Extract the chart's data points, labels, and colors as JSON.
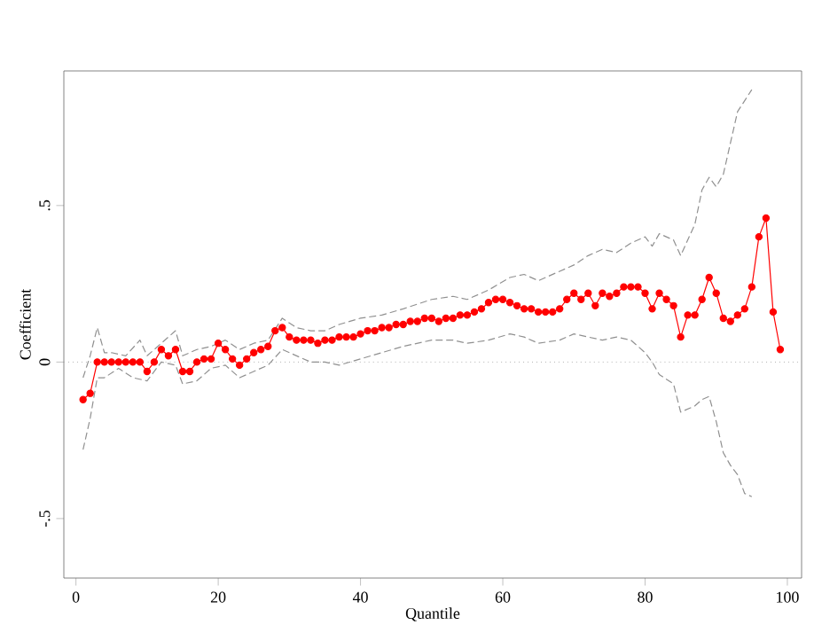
{
  "chart_data": {
    "type": "line",
    "xlabel": "Quantile",
    "ylabel": "Coefficient",
    "xlim": [
      -1.7,
      102
    ],
    "ylim": [
      -0.69,
      0.93
    ],
    "xticks": [
      0,
      20,
      40,
      60,
      80,
      100
    ],
    "yticks": [
      {
        "value": -0.5,
        "label": "-.5"
      },
      {
        "value": 0,
        "label": "0"
      },
      {
        "value": 0.5,
        "label": ".5"
      }
    ],
    "grid": false,
    "ref_lines": [
      {
        "axis": "y",
        "value": 0,
        "color": "#b0b0b0",
        "line_style": "dotted"
      }
    ],
    "series": [
      {
        "color": "#ff0000",
        "marker": "circle",
        "line_style": "solid",
        "x": [
          1,
          2,
          3,
          4,
          5,
          6,
          7,
          8,
          9,
          10,
          11,
          12,
          13,
          14,
          15,
          16,
          17,
          18,
          19,
          20,
          21,
          22,
          23,
          24,
          25,
          26,
          27,
          28,
          29,
          30,
          31,
          32,
          33,
          34,
          35,
          36,
          37,
          38,
          39,
          40,
          41,
          42,
          43,
          44,
          45,
          46,
          47,
          48,
          49,
          50,
          51,
          52,
          53,
          54,
          55,
          56,
          57,
          58,
          59,
          60,
          61,
          62,
          63,
          64,
          65,
          66,
          67,
          68,
          69,
          70,
          71,
          72,
          73,
          74,
          75,
          76,
          77,
          78,
          79,
          80,
          81,
          82,
          83,
          84,
          85,
          86,
          87,
          88,
          89,
          90,
          91,
          92,
          93,
          94,
          95,
          96,
          97,
          98,
          99
        ],
        "values": [
          -0.12,
          -0.1,
          0,
          0,
          0,
          0,
          0,
          0,
          0,
          -0.03,
          0,
          0.04,
          0.02,
          0.04,
          -0.03,
          -0.03,
          0,
          0.01,
          0.01,
          0.06,
          0.04,
          0.01,
          -0.01,
          0.01,
          0.03,
          0.04,
          0.05,
          0.1,
          0.11,
          0.08,
          0.07,
          0.07,
          0.07,
          0.06,
          0.07,
          0.07,
          0.08,
          0.08,
          0.08,
          0.09,
          0.1,
          0.1,
          0.11,
          0.11,
          0.12,
          0.12,
          0.13,
          0.13,
          0.14,
          0.14,
          0.13,
          0.14,
          0.14,
          0.15,
          0.15,
          0.16,
          0.17,
          0.19,
          0.2,
          0.2,
          0.19,
          0.18,
          0.17,
          0.17,
          0.16,
          0.16,
          0.16,
          0.17,
          0.2,
          0.22,
          0.2,
          0.22,
          0.18,
          0.22,
          0.21,
          0.22,
          0.24,
          0.24,
          0.24,
          0.22,
          0.17,
          0.22,
          0.2,
          0.18,
          0.08,
          0.15,
          0.15,
          0.2,
          0.27,
          0.22,
          0.14,
          0.13,
          0.15,
          0.17,
          0.24,
          0.4,
          0.46,
          0.16,
          0.04
        ]
      },
      {
        "color": "#909090",
        "marker": "none",
        "line_style": "dashed",
        "x": [
          1,
          2,
          3,
          4,
          5,
          7,
          9,
          10,
          12,
          14,
          15,
          17,
          19,
          21,
          23,
          25,
          27,
          29,
          31,
          33,
          35,
          37,
          40,
          43,
          46,
          50,
          53,
          55,
          58,
          61,
          63,
          65,
          68,
          70,
          72,
          74,
          76,
          78,
          80,
          81,
          82,
          84,
          85,
          87,
          88,
          89,
          90,
          91,
          92,
          93,
          95
        ],
        "values": [
          -0.05,
          0.02,
          0.11,
          0.03,
          0.03,
          0.02,
          0.07,
          0.02,
          0.06,
          0.1,
          0.02,
          0.04,
          0.05,
          0.07,
          0.04,
          0.06,
          0.07,
          0.14,
          0.11,
          0.1,
          0.1,
          0.12,
          0.14,
          0.15,
          0.17,
          0.2,
          0.21,
          0.2,
          0.23,
          0.27,
          0.28,
          0.26,
          0.29,
          0.31,
          0.34,
          0.36,
          0.35,
          0.38,
          0.4,
          0.37,
          0.41,
          0.39,
          0.34,
          0.44,
          0.55,
          0.59,
          0.56,
          0.6,
          0.7,
          0.8,
          0.87
        ]
      },
      {
        "color": "#909090",
        "marker": "none",
        "line_style": "dashed",
        "x": [
          1,
          2,
          3,
          4,
          6,
          8,
          10,
          12,
          14,
          15,
          17,
          19,
          21,
          23,
          25,
          27,
          29,
          31,
          33,
          35,
          37,
          40,
          43,
          46,
          50,
          53,
          55,
          58,
          61,
          63,
          65,
          68,
          70,
          72,
          74,
          76,
          78,
          80,
          81,
          82,
          84,
          85,
          87,
          88,
          89,
          90,
          91,
          92,
          93,
          94,
          95
        ],
        "values": [
          -0.28,
          -0.18,
          -0.05,
          -0.05,
          -0.02,
          -0.05,
          -0.06,
          0.0,
          -0.01,
          -0.07,
          -0.06,
          -0.02,
          -0.01,
          -0.05,
          -0.03,
          -0.01,
          0.04,
          0.02,
          0.0,
          0.0,
          -0.01,
          0.01,
          0.03,
          0.05,
          0.07,
          0.07,
          0.06,
          0.07,
          0.09,
          0.08,
          0.06,
          0.07,
          0.09,
          0.08,
          0.07,
          0.08,
          0.07,
          0.03,
          0.0,
          -0.04,
          -0.07,
          -0.16,
          -0.14,
          -0.12,
          -0.11,
          -0.19,
          -0.29,
          -0.33,
          -0.36,
          -0.42,
          -0.43
        ]
      }
    ]
  }
}
